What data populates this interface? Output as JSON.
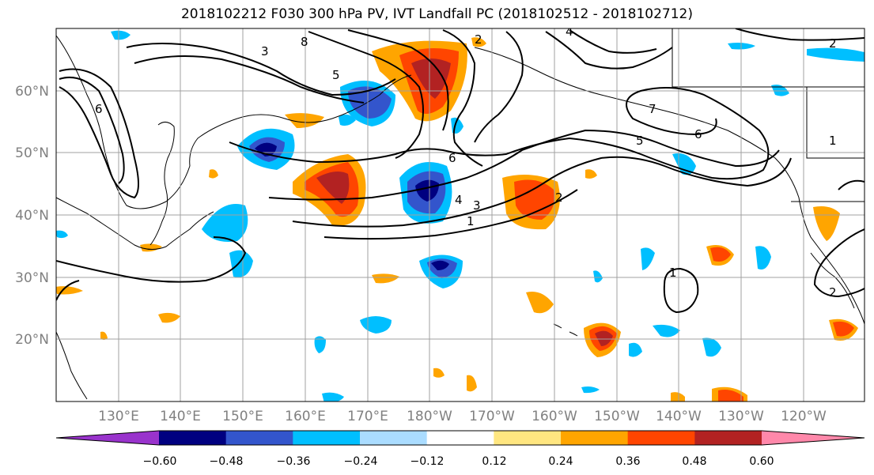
{
  "title": "2018102212 F030 300 hPa PV, IVT Landfall PC (2018102512 - 2018102712)",
  "lon_labels": [
    "130°E",
    "140°E",
    "150°E",
    "160°E",
    "170°E",
    "180°W",
    "170°W",
    "160°W",
    "150°W",
    "140°W",
    "130°W",
    "120°W"
  ],
  "lat_labels": [
    "60°N",
    "50°N",
    "40°N",
    "30°N",
    "20°N"
  ],
  "colorbar": {
    "colors": [
      "#9933cc",
      "#000080",
      "#3355cc",
      "#00bfff",
      "#aadcff",
      "#ffffff",
      "#ffe680",
      "#ffa500",
      "#ff4500",
      "#b22222",
      "#ff88aa"
    ],
    "tick_labels": [
      "−0.60",
      "−0.48",
      "−0.36",
      "−0.24",
      "−0.12",
      "0.12",
      "0.24",
      "0.36",
      "0.48",
      "0.60"
    ]
  },
  "contour_labels": [
    "3",
    "6",
    "8",
    "2",
    "4",
    "6",
    "5",
    "4",
    "3",
    "1",
    "2",
    "7",
    "6",
    "5",
    "2",
    "1",
    "1",
    "2"
  ]
}
